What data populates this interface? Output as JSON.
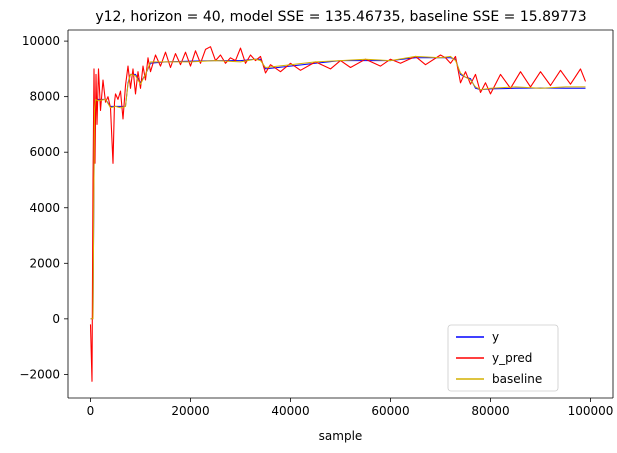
{
  "chart_data": {
    "type": "line",
    "title": "y12, horizon = 40, model SSE = 135.46735, baseline SSE = 15.89773",
    "xlabel": "sample",
    "ylabel": "",
    "xlim": [
      -4500,
      104500
    ],
    "ylim": [
      -2850,
      10400
    ],
    "xticks": [
      0,
      20000,
      40000,
      60000,
      80000,
      100000
    ],
    "xtick_labels": [
      "0",
      "20000",
      "40000",
      "60000",
      "80000",
      "100000"
    ],
    "yticks": [
      -2000,
      0,
      2000,
      4000,
      6000,
      8000,
      10000
    ],
    "ytick_labels": [
      "−2000",
      "0",
      "2000",
      "4000",
      "6000",
      "8000",
      "10000"
    ],
    "grid": false,
    "legend_position": "lower-right",
    "series": [
      {
        "name": "y",
        "color": "#0000ff",
        "x": [
          0,
          500,
          800,
          1000,
          1500,
          3000,
          4000,
          5000,
          6000,
          7000,
          7500,
          8000,
          9000,
          10000,
          11000,
          12000,
          15000,
          20000,
          25000,
          30000,
          33000,
          34000,
          35000,
          40000,
          45000,
          50000,
          55000,
          60000,
          65000,
          70000,
          72000,
          73000,
          74000,
          75000,
          76000,
          77000,
          78000,
          80000,
          85000,
          90000,
          95000,
          99000
        ],
        "y": [
          0,
          0,
          7600,
          7900,
          7900,
          7900,
          7650,
          7650,
          7650,
          7650,
          8500,
          8800,
          8800,
          8500,
          8800,
          9200,
          9250,
          9280,
          9300,
          9300,
          9350,
          9350,
          9000,
          9100,
          9200,
          9300,
          9300,
          9300,
          9400,
          9400,
          9400,
          9350,
          8800,
          8700,
          8650,
          8300,
          8250,
          8280,
          8300,
          8310,
          8300,
          8300
        ]
      },
      {
        "name": "y_pred",
        "color": "#ff0000",
        "x": [
          0,
          300,
          500,
          700,
          900,
          1100,
          1300,
          1600,
          2000,
          2500,
          3000,
          3500,
          4000,
          4500,
          4800,
          5000,
          5500,
          6000,
          6500,
          7000,
          7500,
          8000,
          8500,
          9000,
          9500,
          10000,
          10500,
          11000,
          11500,
          12000,
          13000,
          14000,
          15000,
          16000,
          17000,
          18000,
          19000,
          20000,
          21000,
          22000,
          23000,
          24000,
          25000,
          26000,
          27000,
          28000,
          29000,
          30000,
          31000,
          32000,
          33000,
          34000,
          35000,
          36000,
          38000,
          40000,
          42000,
          45000,
          48000,
          50000,
          52000,
          55000,
          58000,
          60000,
          62000,
          65000,
          67000,
          70000,
          71000,
          72000,
          73000,
          74000,
          75000,
          76000,
          77000,
          78000,
          79000,
          80000,
          82000,
          84000,
          86000,
          88000,
          90000,
          92000,
          94000,
          96000,
          98000,
          99000
        ],
        "y": [
          -200,
          -2250,
          5000,
          9000,
          5600,
          8800,
          7000,
          9000,
          7500,
          8600,
          7800,
          8000,
          7600,
          5600,
          7800,
          8100,
          7900,
          8200,
          7200,
          8400,
          9100,
          8300,
          9000,
          8100,
          8900,
          8300,
          9100,
          8600,
          9400,
          8900,
          9500,
          9100,
          9600,
          9050,
          9550,
          9150,
          9600,
          9100,
          9650,
          9200,
          9700,
          9800,
          9300,
          9500,
          9200,
          9400,
          9300,
          9750,
          9200,
          9500,
          9300,
          9450,
          8850,
          9150,
          8900,
          9200,
          8950,
          9250,
          9000,
          9300,
          9050,
          9350,
          9100,
          9350,
          9200,
          9450,
          9150,
          9500,
          9400,
          9200,
          9450,
          8500,
          8900,
          8450,
          8800,
          8150,
          8500,
          8100,
          8800,
          8300,
          8900,
          8350,
          8900,
          8400,
          8950,
          8450,
          9000,
          8550
        ]
      },
      {
        "name": "baseline",
        "color": "#d4b000",
        "x": [
          0,
          500,
          800,
          1000,
          1500,
          3000,
          4000,
          5000,
          6000,
          7000,
          7500,
          8000,
          9000,
          10000,
          11000,
          12000,
          15000,
          20000,
          25000,
          30000,
          33000,
          34000,
          35000,
          40000,
          45000,
          50000,
          55000,
          60000,
          65000,
          70000,
          72000,
          73000,
          74000,
          75000,
          76000,
          77000,
          78000,
          80000,
          85000,
          90000,
          95000,
          99000
        ],
        "y": [
          0,
          0,
          7550,
          7900,
          7850,
          7900,
          7600,
          7650,
          7600,
          7650,
          8450,
          8800,
          8750,
          8450,
          8800,
          9250,
          9250,
          9250,
          9300,
          9250,
          9350,
          9300,
          9050,
          9150,
          9250,
          9300,
          9350,
          9300,
          9450,
          9400,
          9450,
          9300,
          8850,
          8700,
          8600,
          8350,
          8250,
          8300,
          8350,
          8300,
          8350,
          8350
        ]
      }
    ]
  }
}
